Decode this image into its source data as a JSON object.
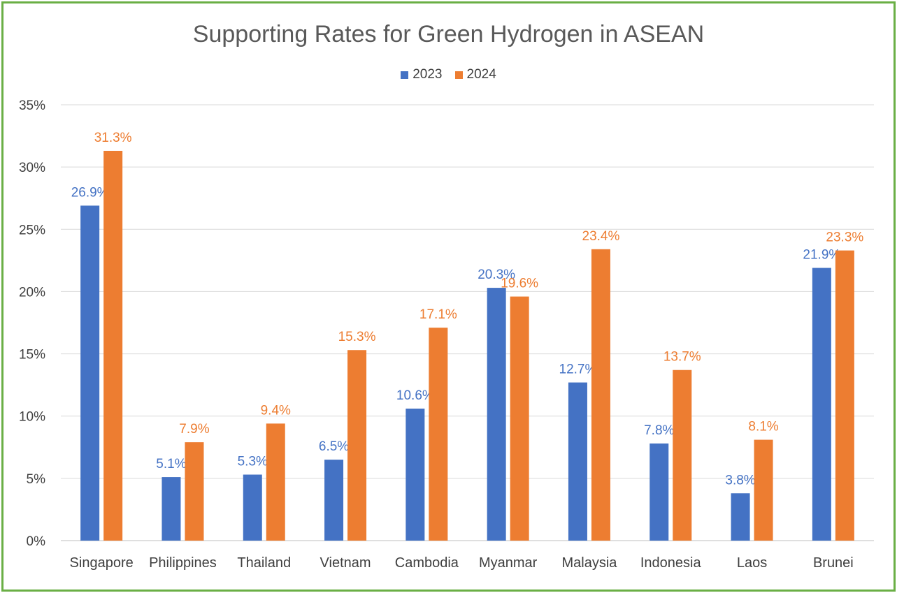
{
  "chart_data": {
    "type": "bar",
    "title": "Supporting Rates for Green Hydrogen in ASEAN",
    "categories": [
      "Singapore",
      "Philippines",
      "Thailand",
      "Vietnam",
      "Cambodia",
      "Myanmar",
      "Malaysia",
      "Indonesia",
      "Laos",
      "Brunei"
    ],
    "series": [
      {
        "name": "2023",
        "color": "#4472c4",
        "values": [
          26.9,
          5.1,
          5.3,
          6.5,
          10.6,
          20.3,
          12.7,
          7.8,
          3.8,
          21.9
        ],
        "labels": [
          "26.9%",
          "5.1%",
          "5.3%",
          "6.5%",
          "10.6%",
          "20.3%",
          "12.7%",
          "7.8%",
          "3.8%",
          "21.9%"
        ]
      },
      {
        "name": "2024",
        "color": "#ed7d31",
        "values": [
          31.3,
          7.9,
          9.4,
          15.3,
          17.1,
          19.6,
          23.4,
          13.7,
          8.1,
          23.3
        ],
        "labels": [
          "31.3%",
          "7.9%",
          "9.4%",
          "15.3%",
          "17.1%",
          "19.6%",
          "23.4%",
          "13.7%",
          "8.1%",
          "23.3%"
        ]
      }
    ],
    "yticks": [
      "0%",
      "5%",
      "10%",
      "15%",
      "20%",
      "25%",
      "30%",
      "35%"
    ],
    "ylim": [
      0,
      35
    ],
    "grid": true,
    "legend_position": "top",
    "frame_color": "#6aaf45"
  }
}
